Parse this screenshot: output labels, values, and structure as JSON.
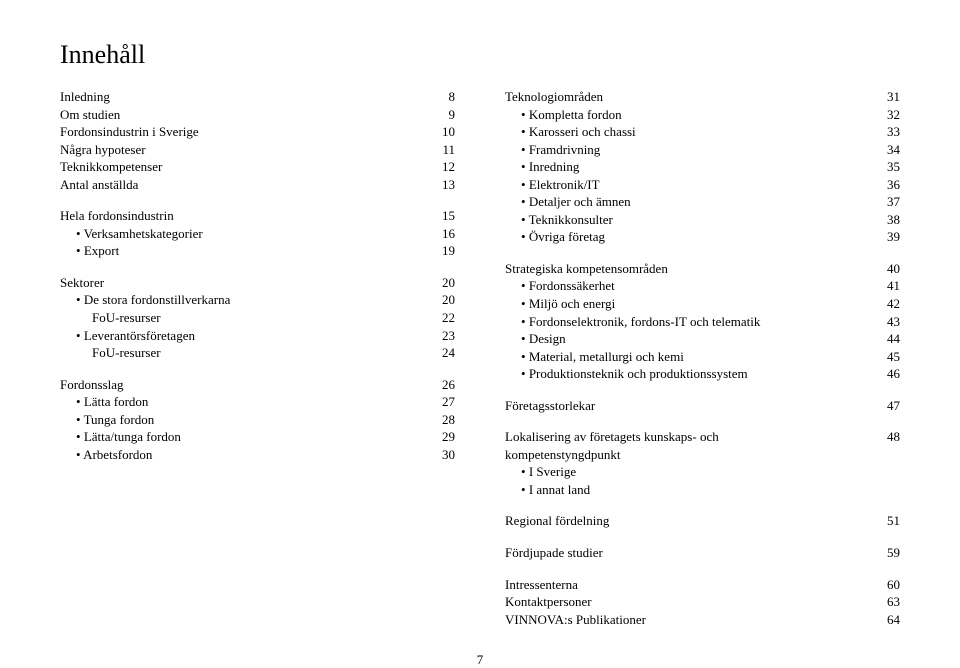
{
  "title": "Innehåll",
  "page_number": "7",
  "left": [
    {
      "type": "row",
      "label": "Inledning",
      "page": "8"
    },
    {
      "type": "row",
      "label": "Om studien",
      "page": "9"
    },
    {
      "type": "row",
      "label": "Fordonsindustrin i Sverige",
      "page": "10"
    },
    {
      "type": "row",
      "label": "Några hypoteser",
      "page": "11"
    },
    {
      "type": "row",
      "label": "Teknikkompetenser",
      "page": "12"
    },
    {
      "type": "row",
      "label": "Antal anställda",
      "page": "13"
    },
    {
      "type": "gap"
    },
    {
      "type": "row",
      "label": "Hela fordonsindustrin",
      "page": "15"
    },
    {
      "type": "bullet",
      "label": "Verksamhetskategorier",
      "page": "16"
    },
    {
      "type": "bullet",
      "label": "Export",
      "page": "19"
    },
    {
      "type": "gap"
    },
    {
      "type": "row",
      "label": "Sektorer",
      "page": "20"
    },
    {
      "type": "bullet",
      "label": "De stora fordonstillverkarna",
      "page": "20"
    },
    {
      "type": "bullet2",
      "label": "FoU-resurser",
      "page": "22"
    },
    {
      "type": "bullet",
      "label": "Leverantörsföretagen",
      "page": "23"
    },
    {
      "type": "bullet2",
      "label": "FoU-resurser",
      "page": "24"
    },
    {
      "type": "gap"
    },
    {
      "type": "row",
      "label": "Fordonsslag",
      "page": "26"
    },
    {
      "type": "bullet",
      "label": "Lätta fordon",
      "page": "27"
    },
    {
      "type": "bullet",
      "label": "Tunga fordon",
      "page": "28"
    },
    {
      "type": "bullet",
      "label": "Lätta/tunga fordon",
      "page": "29"
    },
    {
      "type": "bullet",
      "label": "Arbetsfordon",
      "page": "30"
    }
  ],
  "right": [
    {
      "type": "row",
      "label": "Teknologiområden",
      "page": "31"
    },
    {
      "type": "bullet",
      "label": "Kompletta fordon",
      "page": "32"
    },
    {
      "type": "bullet",
      "label": "Karosseri och chassi",
      "page": "33"
    },
    {
      "type": "bullet",
      "label": "Framdrivning",
      "page": "34"
    },
    {
      "type": "bullet",
      "label": "Inredning",
      "page": "35"
    },
    {
      "type": "bullet",
      "label": "Elektronik/IT",
      "page": "36"
    },
    {
      "type": "bullet",
      "label": "Detaljer och ämnen",
      "page": "37"
    },
    {
      "type": "bullet",
      "label": "Teknikkonsulter",
      "page": "38"
    },
    {
      "type": "bullet",
      "label": "Övriga företag",
      "page": "39"
    },
    {
      "type": "gap"
    },
    {
      "type": "row",
      "label": "Strategiska kompetensområden",
      "page": "40"
    },
    {
      "type": "bullet",
      "label": "Fordonssäkerhet",
      "page": "41"
    },
    {
      "type": "bullet",
      "label": "Miljö och energi",
      "page": "42"
    },
    {
      "type": "bullet",
      "label": "Fordonselektronik, fordons-IT och telematik",
      "page": "43"
    },
    {
      "type": "bullet",
      "label": "Design",
      "page": "44"
    },
    {
      "type": "bullet",
      "label": "Material, metallurgi och kemi",
      "page": "45"
    },
    {
      "type": "bullet",
      "label": "Produktionsteknik och produktionssystem",
      "page": "46"
    },
    {
      "type": "gap"
    },
    {
      "type": "row",
      "label": "Företagsstorlekar",
      "page": "47"
    },
    {
      "type": "gap"
    },
    {
      "type": "row",
      "label": "Lokalisering av företagets kunskaps- och",
      "page": "48"
    },
    {
      "type": "row",
      "label": "kompetenstyngdpunkt",
      "page": ""
    },
    {
      "type": "bullet",
      "label": "I Sverige",
      "page": ""
    },
    {
      "type": "bullet",
      "label": "I annat land",
      "page": ""
    },
    {
      "type": "gap"
    },
    {
      "type": "row",
      "label": "Regional fördelning",
      "page": "51"
    },
    {
      "type": "gap"
    },
    {
      "type": "row",
      "label": "Fördjupade studier",
      "page": "59"
    },
    {
      "type": "gap"
    },
    {
      "type": "row",
      "label": "Intressenterna",
      "page": "60"
    },
    {
      "type": "row",
      "label": "Kontaktpersoner",
      "page": "63"
    },
    {
      "type": "row",
      "label": "VINNOVA:s Publikationer",
      "page": "64"
    }
  ]
}
